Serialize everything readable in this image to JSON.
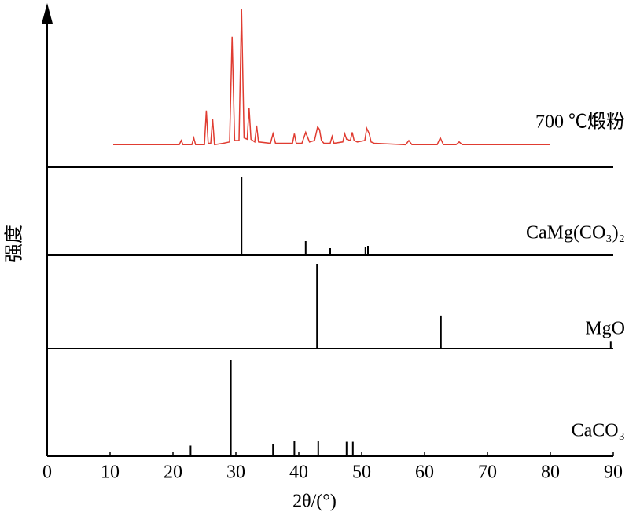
{
  "chart_data": {
    "type": "line",
    "xlabel": "2θ/(°)",
    "ylabel": "强度",
    "xlim": [
      0,
      90
    ],
    "xticks": [
      0,
      10,
      20,
      30,
      40,
      50,
      60,
      70,
      80,
      90
    ],
    "series": [
      {
        "name": "700 ℃煅粉",
        "color": "#e03c31",
        "mode": "line",
        "x": [
          10.5,
          12,
          15,
          20,
          21,
          21.3,
          21.6,
          23,
          23.3,
          23.6,
          25,
          25.3,
          25.6,
          26,
          26.3,
          26.6,
          28,
          29,
          29.4,
          29.8,
          30.5,
          30.9,
          31.3,
          31.8,
          32.1,
          32.4,
          33,
          33.3,
          33.6,
          35.5,
          35.9,
          36.3,
          39,
          39.3,
          39.6,
          40.5,
          41.1,
          41.7,
          42.5,
          43,
          43.3,
          43.6,
          44,
          45,
          45.3,
          45.6,
          47,
          47.3,
          47.6,
          48.2,
          48.5,
          48.8,
          49.3,
          50.5,
          50.8,
          51.2,
          51.5,
          52,
          57,
          57.5,
          58,
          62,
          62.5,
          63,
          65,
          65.5,
          66,
          70,
          75,
          78,
          80
        ],
        "values": [
          1,
          1,
          1,
          1,
          1,
          4,
          1,
          1,
          6,
          1,
          1,
          26,
          2,
          2,
          20,
          1,
          2,
          3,
          80,
          4,
          4,
          100,
          6,
          5,
          28,
          5,
          3,
          15,
          3,
          2,
          9,
          2,
          2,
          9,
          2,
          2,
          10,
          3,
          4,
          14,
          12,
          4,
          2,
          2,
          7,
          2,
          3,
          9,
          5,
          4,
          10,
          4,
          3,
          4,
          13,
          9,
          3,
          2,
          1,
          4,
          1,
          1,
          6,
          1,
          1,
          3,
          1,
          1,
          1,
          1,
          1
        ]
      },
      {
        "name": "CaMg(CO₃)₂",
        "color": "#000000",
        "mode": "stick",
        "x": [
          30.9,
          41.1,
          45.0,
          50.6,
          51.0
        ],
        "values": [
          100,
          18,
          9,
          10,
          12
        ]
      },
      {
        "name": "MgO",
        "color": "#000000",
        "mode": "stick",
        "x": [
          42.9,
          62.6,
          89.6
        ],
        "values": [
          100,
          39,
          9
        ]
      },
      {
        "name": "CaCO₃",
        "color": "#000000",
        "mode": "stick",
        "x": [
          22.8,
          29.2,
          35.9,
          39.3,
          43.1,
          47.6,
          48.6
        ],
        "values": [
          11,
          100,
          13,
          16,
          16,
          15,
          15
        ]
      }
    ]
  }
}
